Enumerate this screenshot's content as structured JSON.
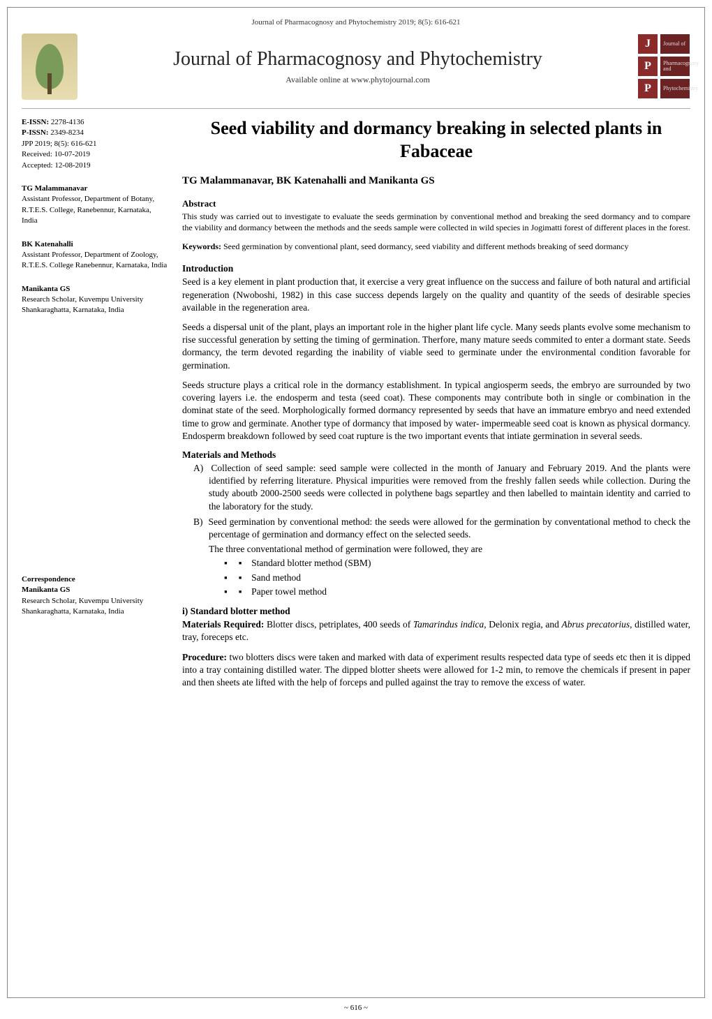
{
  "running_header": "Journal of Pharmacognosy and Phytochemistry 2019; 8(5): 616-621",
  "masthead": {
    "journal_title": "Journal of Pharmacognosy and Phytochemistry",
    "availability": "Available online at www.phytojournal.com",
    "badges": [
      {
        "letter": "J",
        "text": "Journal of"
      },
      {
        "letter": "P",
        "text": "Pharmacognosy and"
      },
      {
        "letter": "P",
        "text": "Phytochemistry"
      }
    ]
  },
  "meta": {
    "e_issn_label": "E-ISSN:",
    "e_issn_value": "2278-4136",
    "p_issn_label": "P-ISSN:",
    "p_issn_value": "2349-8234",
    "jpp_line": "JPP 2019; 8(5): 616-621",
    "received": "Received: 10-07-2019",
    "accepted": "Accepted: 12-08-2019"
  },
  "authors_sidebar": [
    {
      "name": "TG Malammanavar",
      "affiliation": "Assistant Professor, Department of Botany, R.T.E.S. College, Ranebennur, Karnataka, India"
    },
    {
      "name": "BK Katenahalli",
      "affiliation": "Assistant Professor, Department of Zoology, R.T.E.S. College Ranebennur, Karnataka, India"
    },
    {
      "name": "Manikanta GS",
      "affiliation": "Research Scholar, Kuvempu University Shankaraghatta, Karnataka, India"
    }
  ],
  "correspondence": {
    "label": "Correspondence",
    "name": "Manikanta GS",
    "affiliation": "Research Scholar, Kuvempu University Shankaraghatta, Karnataka, India"
  },
  "article": {
    "title": "Seed viability and dormancy breaking in selected plants in Fabaceae",
    "authors_line": "TG Malammanavar, BK Katenahalli and Manikanta GS",
    "abstract_heading": "Abstract",
    "abstract_text": "This study was carried out to investigate to evaluate the seeds germination by conventional method and breaking the seed dormancy and to compare the viability and dormancy between the methods and the seeds sample were collected in wild species in Jogimatti forest of different places in the forest.",
    "keywords_label": "Keywords:",
    "keywords_text": "Seed germination by conventional plant, seed dormancy, seed viability and different methods breaking of seed dormancy",
    "introduction_heading": "Introduction",
    "intro_p1": "Seed is a key element in plant production that, it exercise a very great influence on the success and failure of both natural and artificial regeneration (Nwoboshi, 1982) in this case success depends largely on the quality and quantity of the seeds of desirable species available in the regeneration area.",
    "intro_p2": "Seeds a dispersal unit of the plant, plays an important role in the higher plant life cycle. Many seeds plants evolve some mechanism to rise successful generation by setting the timing of germination. Therfore, many mature seeds commited to enter a dormant state. Seeds dormancy, the term devoted regarding the inability of viable seed to germinate under the environmental condition favorable for germination.",
    "intro_p3": "Seeds structure plays a critical role in the dormancy establishment. In typical angiosperm seeds, the embryo are surrounded by two covering layers i.e. the endosperm and testa (seed coat). These components may contribute both in single or combination in the dominat state of the seed. Morphologically formed dormancy represented by seeds that have an immature embryo and need extended time to grow and germinate. Another type of dormancy that imposed by water- impermeable seed coat is known as physical dormancy. Endosperm breakdown followed by seed coat rupture is the two important events that intiate germination in several seeds.",
    "methods_heading": "Materials and Methods",
    "method_a_label": "A)",
    "method_a_text": "Collection of seed sample: seed sample were collected in the month of January and February 2019. And the plants were identified by referring literature. Physical impurities were removed from the freshly fallen seeds while collection. During the study aboutb 2000-2500 seeds were collected in polythene bags separtley and then labelled to maintain identity and carried to the laboratory for the study.",
    "method_b_label": "B)",
    "method_b_text": "Seed germination by conventional method: the seeds were allowed for the germination by conventational method to check the percentage of germination and dormancy effect on the selected seeds.",
    "method_b_sub_intro": "The three conventational method of germination were followed, they are",
    "sub_methods": [
      "Standard blotter method (SBM)",
      "Sand method",
      "Paper towel method"
    ],
    "sbm_heading": "i) Standard blotter method",
    "materials_label": "Materials Required:",
    "materials_text_1": "Blotter discs, petriplates, 400 seeds of ",
    "materials_italic_1": "Tamarindus indica",
    "materials_text_2": ", Delonix regia, and ",
    "materials_italic_2": "Abrus precatorius",
    "materials_text_3": ", distilled water, tray, foreceps etc.",
    "procedure_label": "Procedure:",
    "procedure_text": "two blotters discs were taken and marked with data of experiment results respected data type of seeds etc then it is dipped into a tray containing distilled water. The dipped blotter sheets were allowed for 1-2 min, to remove the chemicals if present in paper and then sheets ate lifted with the help of forceps and pulled against the tray to remove the excess of water."
  },
  "page_number": "~ 616 ~",
  "colors": {
    "text": "#000000",
    "background": "#ffffff",
    "badge_bg": "#8b2a2a",
    "logo_leaf": "#7a9b5a"
  }
}
